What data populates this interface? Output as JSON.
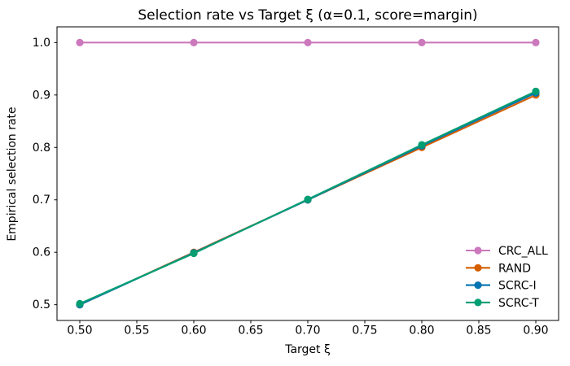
{
  "figure": {
    "background": "#ffffff",
    "axis_color": "#000000"
  },
  "chart_data": {
    "type": "line",
    "title": "Selection rate vs Target ξ (α=0.1, score=margin)",
    "xlabel": "Target ξ",
    "ylabel": "Empirical selection rate",
    "x": [
      0.5,
      0.6,
      0.7,
      0.8,
      0.9
    ],
    "series": [
      {
        "name": "CRC_ALL",
        "color": "#CC78BC",
        "values": [
          1.0,
          1.0,
          1.0,
          1.0,
          1.0
        ]
      },
      {
        "name": "RAND",
        "color": "#D55E00",
        "values": [
          0.5,
          0.6,
          0.7,
          0.8,
          0.9
        ]
      },
      {
        "name": "SCRC-I",
        "color": "#0173B2",
        "values": [
          0.5,
          0.599,
          0.7,
          0.803,
          0.904
        ]
      },
      {
        "name": "SCRC-T",
        "color": "#029E73",
        "values": [
          0.502,
          0.598,
          0.701,
          0.805,
          0.907
        ]
      }
    ],
    "xlim": [
      0.48,
      0.92
    ],
    "ylim": [
      0.47,
      1.03
    ],
    "x_ticks": [
      0.5,
      0.55,
      0.6,
      0.65,
      0.7,
      0.75,
      0.8,
      0.85,
      0.9
    ],
    "x_tick_labels": [
      "0.50",
      "0.55",
      "0.60",
      "0.65",
      "0.70",
      "0.75",
      "0.80",
      "0.85",
      "0.90"
    ],
    "y_ticks": [
      0.5,
      0.6,
      0.7,
      0.8,
      0.9,
      1.0
    ],
    "y_tick_labels": [
      "0.5",
      "0.6",
      "0.7",
      "0.8",
      "0.9",
      "1.0"
    ],
    "grid": false,
    "marker": "circle",
    "legend": {
      "location": "lower right",
      "frame": false,
      "entries": [
        "CRC_ALL",
        "RAND",
        "SCRC-I",
        "SCRC-T"
      ]
    }
  }
}
